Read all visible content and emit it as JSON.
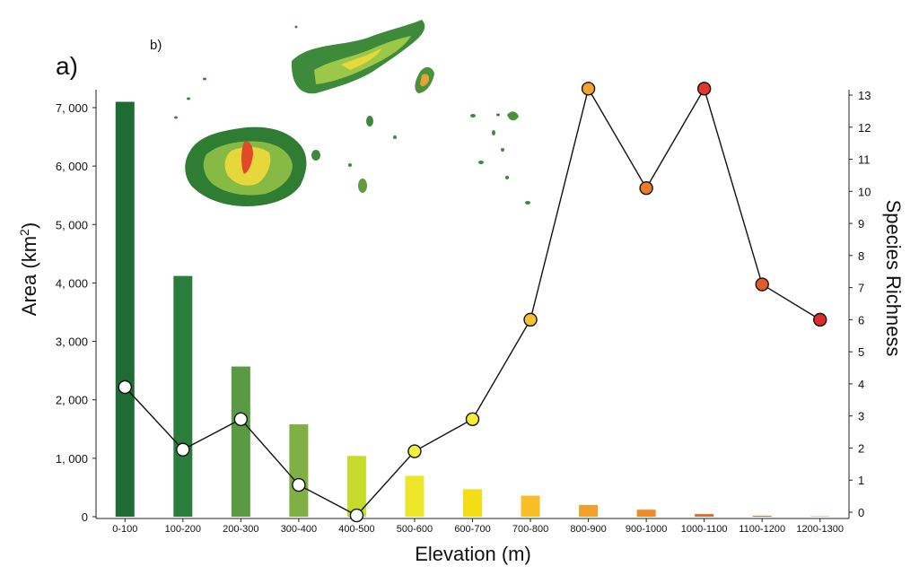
{
  "panels": {
    "a": "a)",
    "b": "b)"
  },
  "chart_data": {
    "type": "bar",
    "categories": [
      "0-100",
      "100-200",
      "200-300",
      "300-400",
      "400-500",
      "500-600",
      "600-700",
      "700-800",
      "800-900",
      "900-1000",
      "1000-1100",
      "1100-1200",
      "1200-1300"
    ],
    "xlabel": "Elevation (m)",
    "ylabel": "Area (km²)",
    "y2label": "Species Richness",
    "ylim": [
      0,
      7000
    ],
    "y2lim": [
      0,
      13
    ],
    "yticks": [
      "0",
      "1, 000",
      "2, 000",
      "3, 000",
      "4, 000",
      "5, 000",
      "6, 000",
      "7, 000"
    ],
    "y2ticks": [
      "0",
      "1",
      "2",
      "3",
      "4",
      "5",
      "6",
      "7",
      "8",
      "9",
      "10",
      "11",
      "12",
      "13"
    ],
    "grid": false,
    "series": [
      {
        "type": "bar",
        "axis": "left",
        "values": [
          7100,
          4120,
          2570,
          1580,
          1040,
          700,
          470,
          360,
          200,
          120,
          45,
          15,
          5
        ],
        "colors": [
          "#1e6b34",
          "#2a7d3d",
          "#5a9a45",
          "#7fb043",
          "#c7db2c",
          "#ede528",
          "#f5dd16",
          "#f7be26",
          "#f3a02a",
          "#ee8a2a",
          "#e56a2a",
          "#e45a2a",
          "#e34a2a"
        ]
      },
      {
        "type": "line",
        "axis": "right",
        "values": [
          3.9,
          1.95,
          2.9,
          0.85,
          -0.1,
          1.9,
          2.9,
          6.0,
          13.2,
          10.1,
          13.2,
          7.1,
          6.0
        ],
        "colors": [
          "#ffffff",
          "#ffffff",
          "#ffffff",
          "#ffffff",
          "#ffffff",
          "#f8f23c",
          "#f8ec30",
          "#f7c22e",
          "#f5a32c",
          "#ef7a2a",
          "#e0382b",
          "#e55a2a",
          "#dd2a2a"
        ]
      }
    ]
  },
  "inset_map": {
    "description": "Fiji elevation map",
    "colors": {
      "low": "#2e7d32",
      "mid": "#8bc34a",
      "high": "#fdd835",
      "peak": "#e53935"
    }
  }
}
